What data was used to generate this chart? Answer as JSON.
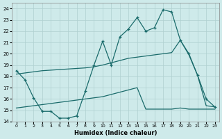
{
  "xlabel": "Humidex (Indice chaleur)",
  "xlim": [
    -0.5,
    23.5
  ],
  "ylim": [
    14,
    24.5
  ],
  "yticks": [
    14,
    15,
    16,
    17,
    18,
    19,
    20,
    21,
    22,
    23,
    24
  ],
  "xticks": [
    0,
    1,
    2,
    3,
    4,
    5,
    6,
    7,
    8,
    9,
    10,
    11,
    12,
    13,
    14,
    15,
    16,
    17,
    18,
    19,
    20,
    21,
    22,
    23
  ],
  "bg_color": "#ceeaea",
  "grid_color": "#afd0d0",
  "line_color": "#1a6b6b",
  "line1_x": [
    0,
    1,
    2,
    3,
    4,
    5,
    6,
    7,
    8,
    9,
    10,
    11,
    12,
    13,
    14,
    15,
    16,
    17,
    18,
    19,
    20,
    21,
    22,
    23
  ],
  "line1_y": [
    18.5,
    17.7,
    16.1,
    14.9,
    14.9,
    14.3,
    14.3,
    14.5,
    16.7,
    19.0,
    21.1,
    19.0,
    21.5,
    22.2,
    23.2,
    22.0,
    22.3,
    23.9,
    23.7,
    21.2,
    20.0,
    18.1,
    16.0,
    15.3
  ],
  "line2_x": [
    0,
    1,
    2,
    3,
    4,
    5,
    6,
    7,
    8,
    9,
    10,
    11,
    12,
    13,
    14,
    15,
    16,
    17,
    18,
    19,
    20,
    21,
    22,
    23
  ],
  "line2_y": [
    18.2,
    18.3,
    18.4,
    18.5,
    18.55,
    18.6,
    18.65,
    18.7,
    18.75,
    18.85,
    19.0,
    19.2,
    19.4,
    19.6,
    19.7,
    19.8,
    19.9,
    20.0,
    20.1,
    21.2,
    19.9,
    18.1,
    15.4,
    15.3
  ],
  "line3_x": [
    0,
    1,
    2,
    3,
    4,
    5,
    6,
    7,
    8,
    9,
    10,
    11,
    12,
    13,
    14,
    15,
    16,
    17,
    18,
    19,
    20,
    21,
    22,
    23
  ],
  "line3_y": [
    15.2,
    15.3,
    15.4,
    15.5,
    15.6,
    15.7,
    15.8,
    15.9,
    16.0,
    16.1,
    16.2,
    16.4,
    16.6,
    16.8,
    17.0,
    15.1,
    15.1,
    15.1,
    15.1,
    15.2,
    15.1,
    15.1,
    15.1,
    15.1
  ]
}
